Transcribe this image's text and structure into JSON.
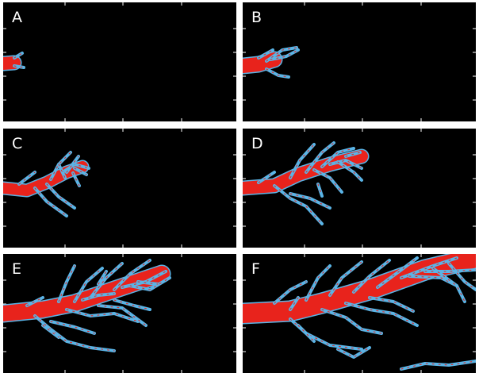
{
  "panels": [
    {
      "label": "A"
    },
    {
      "label": "B"
    },
    {
      "label": "C"
    },
    {
      "label": "D"
    },
    {
      "label": "E"
    },
    {
      "label": "F"
    }
  ],
  "colors": {
    "background": "#000000",
    "core": "#e8231c",
    "edge": "#5ab4e6",
    "ticks": "#ffffff"
  }
}
